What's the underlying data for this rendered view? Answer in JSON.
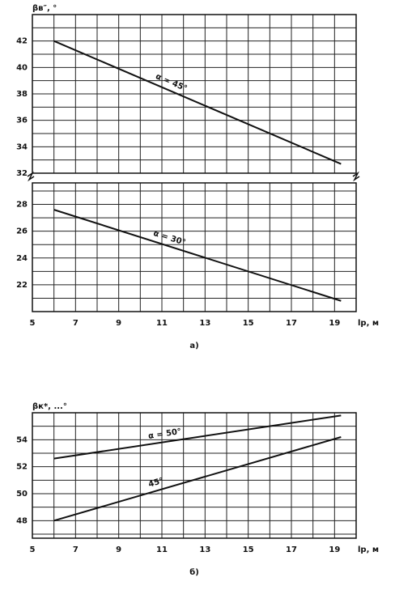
{
  "chart_data": [
    {
      "type": "line",
      "ylabel": "βв″, °",
      "x": [
        6,
        19.3
      ],
      "series": [
        {
          "name": "α = 45°",
          "color": "#111111",
          "values": [
            42,
            32.7
          ]
        }
      ],
      "xlim": [
        5,
        20
      ],
      "ylim": [
        32,
        44
      ],
      "xticks": [
        5,
        7,
        9,
        11,
        13,
        15,
        17,
        19
      ],
      "yticks": [
        32,
        34,
        36,
        38,
        40,
        42
      ],
      "minor_xticks": [
        6,
        8,
        10,
        12,
        14,
        16,
        18
      ],
      "minor_yticks": [
        33,
        35,
        37,
        39,
        41,
        43
      ],
      "xtick_labels": false,
      "grid": true
    },
    {
      "type": "line",
      "xlabel": "lр, м",
      "caption": "а)",
      "x": [
        6,
        19.3
      ],
      "series": [
        {
          "name": "α = 30°",
          "color": "#111111",
          "values": [
            27.6,
            20.8
          ]
        }
      ],
      "xlim": [
        5,
        20
      ],
      "ylim": [
        20,
        29.6
      ],
      "xticks": [
        5,
        7,
        9,
        11,
        13,
        15,
        17,
        19
      ],
      "yticks": [
        22,
        24,
        26,
        28
      ],
      "minor_xticks": [
        6,
        8,
        10,
        12,
        14,
        16,
        18
      ],
      "minor_yticks": [
        21,
        23,
        25,
        27,
        29
      ],
      "xtick_labels": true,
      "grid": true
    },
    {
      "type": "line",
      "ylabel": "βк*, ...°",
      "xlabel": "lр, м",
      "caption": "б)",
      "x": [
        6,
        19.3
      ],
      "series": [
        {
          "name": "α = 50°",
          "color": "#111111",
          "values": [
            52.6,
            55.8
          ]
        },
        {
          "name": "45°",
          "color": "#111111",
          "values": [
            48.0,
            54.2
          ]
        }
      ],
      "xlim": [
        5,
        20
      ],
      "ylim": [
        46.7,
        56
      ],
      "xticks": [
        5,
        7,
        9,
        11,
        13,
        15,
        17,
        19
      ],
      "yticks": [
        48,
        50,
        52,
        54
      ],
      "minor_xticks": [
        6,
        8,
        10,
        12,
        14,
        16,
        18
      ],
      "minor_yticks": [
        47,
        49,
        51,
        53,
        55
      ],
      "xtick_labels": true,
      "grid": true
    }
  ]
}
